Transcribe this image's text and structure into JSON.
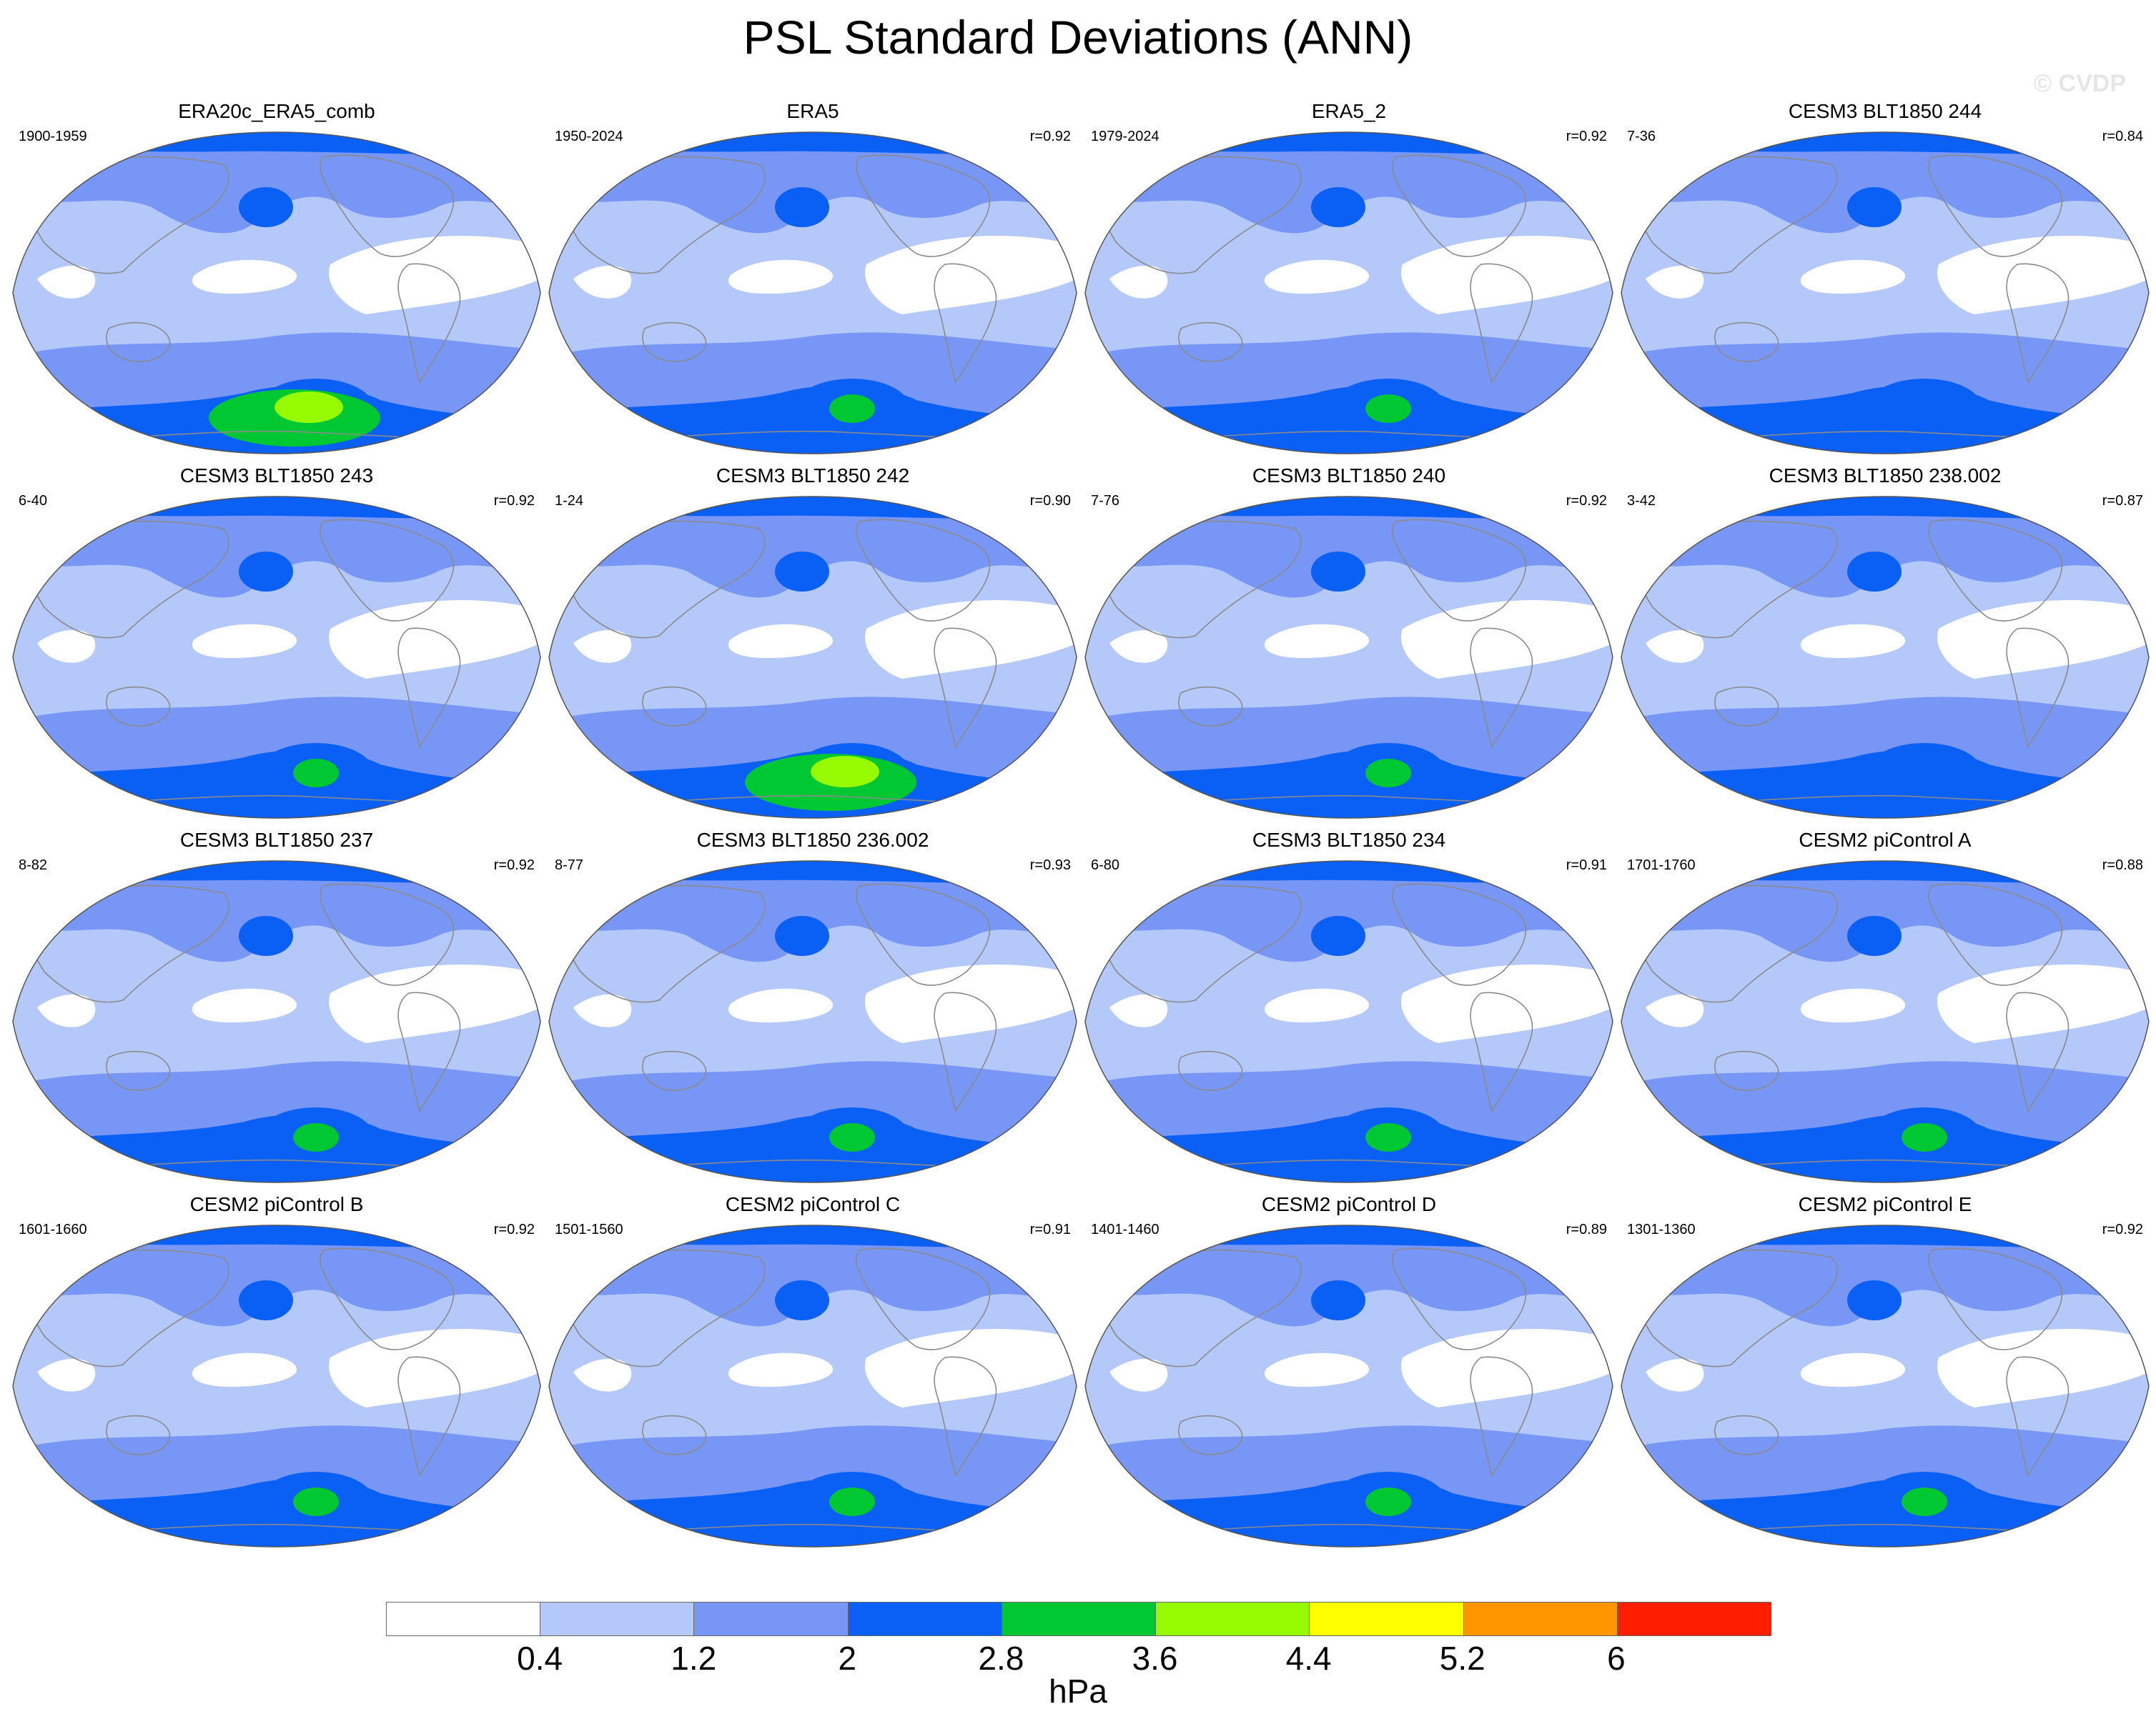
{
  "title": "PSL Standard Deviations (ANN)",
  "watermark": "© CVDP",
  "panels": [
    {
      "title": "ERA20c_ERA5_comb",
      "years": "1900-1959",
      "r": "",
      "max": 5
    },
    {
      "title": "ERA5",
      "years": "1950-2024",
      "r": "r=0.92",
      "max": 4
    },
    {
      "title": "ERA5_2",
      "years": "1979-2024",
      "r": "r=0.92",
      "max": 4
    },
    {
      "title": "CESM3 BLT1850 244",
      "years": "7-36",
      "r": "r=0.84",
      "max": 3
    },
    {
      "title": "CESM3 BLT1850 243",
      "years": "6-40",
      "r": "r=0.92",
      "max": 4
    },
    {
      "title": "CESM3 BLT1850 242",
      "years": "1-24",
      "r": "r=0.90",
      "max": 5
    },
    {
      "title": "CESM3 BLT1850 240",
      "years": "7-76",
      "r": "r=0.92",
      "max": 4
    },
    {
      "title": "CESM3 BLT1850 238.002",
      "years": "3-42",
      "r": "r=0.87",
      "max": 3
    },
    {
      "title": "CESM3 BLT1850 237",
      "years": "8-82",
      "r": "r=0.92",
      "max": 4
    },
    {
      "title": "CESM3 BLT1850 236.002",
      "years": "8-77",
      "r": "r=0.93",
      "max": 4
    },
    {
      "title": "CESM3 BLT1850 234",
      "years": "6-80",
      "r": "r=0.91",
      "max": 4
    },
    {
      "title": "CESM2 piControl A",
      "years": "1701-1760",
      "r": "r=0.88",
      "max": 4
    },
    {
      "title": "CESM2 piControl B",
      "years": "1601-1660",
      "r": "r=0.92",
      "max": 4
    },
    {
      "title": "CESM2 piControl C",
      "years": "1501-1560",
      "r": "r=0.91",
      "max": 4
    },
    {
      "title": "CESM2 piControl D",
      "years": "1401-1460",
      "r": "r=0.89",
      "max": 4
    },
    {
      "title": "CESM2 piControl E",
      "years": "1301-1360",
      "r": "r=0.92",
      "max": 4
    }
  ],
  "colorbar": {
    "colors": [
      "#ffffff",
      "#b4c8fa",
      "#7896f5",
      "#0a5ff5",
      "#00c832",
      "#96fa00",
      "#ffff00",
      "#ff9600",
      "#ff1e00"
    ],
    "labels": [
      "0.4",
      "1.2",
      "2",
      "2.8",
      "3.6",
      "4.4",
      "5.2",
      "6"
    ],
    "units": "hPa"
  }
}
